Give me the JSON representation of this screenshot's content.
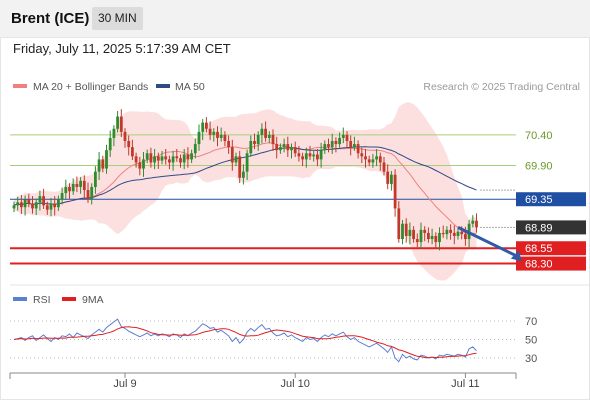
{
  "header": {
    "title": "Brent (ICE)",
    "timeframe": "30 MIN"
  },
  "timestamp": "Friday, July 11, 2025 5:17:39 AM CET",
  "legend": {
    "ma20": {
      "label": "MA 20 + Bollinger Bands",
      "color": "#f08080"
    },
    "ma50": {
      "label": "MA 50",
      "color": "#2e4a87"
    },
    "credit": "Research © 2025 Trading Central"
  },
  "rsi_legend": {
    "rsi": {
      "label": "RSI",
      "color": "#5b7fd6"
    },
    "ma9": {
      "label": "9MA",
      "color": "#e02020"
    }
  },
  "colors": {
    "bullish": "#2e8b2e",
    "bearish": "#c0392b",
    "support": "#e02020",
    "pivot": "#1f4fa3",
    "resistance": "#a6cf7a",
    "last": "#333333",
    "bollinger": "#fcdada",
    "arrow": "#2e5aa8"
  },
  "chart_data": {
    "type": "candlestick",
    "y_range": [
      67.95,
      71.1
    ],
    "levels": [
      {
        "label": "70.40",
        "value": 70.4,
        "kind": "resistance"
      },
      {
        "label": "69.90",
        "value": 69.9,
        "kind": "resistance"
      },
      {
        "label": "69.35",
        "value": 69.35,
        "kind": "pivot"
      },
      {
        "label": "68.89",
        "value": 68.89,
        "kind": "last"
      },
      {
        "label": "68.55",
        "value": 68.55,
        "kind": "support"
      },
      {
        "label": "68.30",
        "value": 68.3,
        "kind": "support"
      }
    ],
    "x_labels": [
      {
        "label": "Jul 9",
        "index": 30
      },
      {
        "label": "Jul 10",
        "index": 76
      },
      {
        "label": "Jul 11",
        "index": 122
      }
    ],
    "forecast": {
      "from_index": 120,
      "from_value": 68.89,
      "to_index": 134,
      "to_value": 68.3
    },
    "closes": [
      69.25,
      69.3,
      69.22,
      69.35,
      69.28,
      69.2,
      69.3,
      69.4,
      69.25,
      69.18,
      69.28,
      69.22,
      69.35,
      69.45,
      69.55,
      69.48,
      69.6,
      69.55,
      69.65,
      69.5,
      69.35,
      69.55,
      69.8,
      70.0,
      69.85,
      70.15,
      70.35,
      70.5,
      70.7,
      70.45,
      70.3,
      70.2,
      70.05,
      69.95,
      69.85,
      70.0,
      70.1,
      69.95,
      70.05,
      69.98,
      70.05,
      70.0,
      69.95,
      70.05,
      70.02,
      69.95,
      70.08,
      70.0,
      70.1,
      70.25,
      70.45,
      70.6,
      70.5,
      70.4,
      70.45,
      70.35,
      70.4,
      70.3,
      70.2,
      69.95,
      70.05,
      69.7,
      69.8,
      70.1,
      70.3,
      70.25,
      70.4,
      70.5,
      70.35,
      70.4,
      70.25,
      70.15,
      70.2,
      70.25,
      70.15,
      70.2,
      70.1,
      70.05,
      70.0,
      70.1,
      70.05,
      70.08,
      70.0,
      70.15,
      70.25,
      70.2,
      70.3,
      70.25,
      70.35,
      70.4,
      70.3,
      70.2,
      70.25,
      70.1,
      70.05,
      70.0,
      69.95,
      70.0,
      70.05,
      69.95,
      69.8,
      69.6,
      69.75,
      69.2,
      68.7,
      68.95,
      68.75,
      68.85,
      68.7,
      68.65,
      68.85,
      68.8,
      68.7,
      68.75,
      68.65,
      68.8,
      68.78,
      68.85,
      68.8,
      68.75,
      68.82,
      68.78,
      68.7,
      68.95,
      69.0,
      68.89
    ],
    "rsi": [
      50,
      51,
      52,
      49,
      52,
      54,
      49,
      52,
      55,
      51,
      48,
      52,
      50,
      54,
      53,
      56,
      52,
      57,
      55,
      53,
      51,
      55,
      58,
      61,
      58,
      63,
      66,
      69,
      72,
      64,
      62,
      59,
      57,
      55,
      53,
      55,
      57,
      54,
      56,
      54,
      56,
      55,
      53,
      56,
      55,
      52,
      56,
      54,
      57,
      59,
      63,
      67,
      65,
      62,
      63,
      58,
      60,
      57,
      54,
      48,
      52,
      46,
      50,
      58,
      62,
      59,
      63,
      66,
      61,
      62,
      57,
      54,
      55,
      57,
      53,
      55,
      52,
      50,
      48,
      52,
      50,
      51,
      48,
      52,
      55,
      53,
      56,
      54,
      56,
      58,
      53,
      50,
      52,
      48,
      46,
      44,
      42,
      44,
      46,
      43,
      40,
      36,
      42,
      30,
      26,
      34,
      30,
      32,
      29,
      28,
      33,
      32,
      30,
      31,
      29,
      33,
      32,
      34,
      33,
      32,
      34,
      33,
      31,
      40,
      42,
      38
    ],
    "rsi_levels": [
      70,
      50,
      30
    ]
  }
}
